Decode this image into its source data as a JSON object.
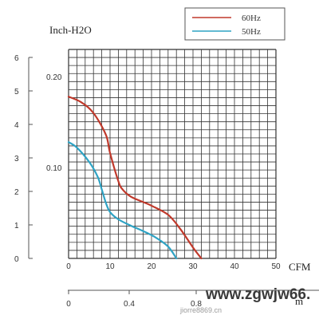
{
  "chart_data": {
    "type": "line",
    "title": "",
    "ylabel": "Inch-H2O",
    "xlabel": "CFM",
    "xlim": [
      0,
      50
    ],
    "x_ticks": [
      0,
      10,
      20,
      30,
      40,
      50
    ],
    "y_left_ticks": [
      0,
      1,
      2,
      3,
      4,
      5,
      6
    ],
    "y_inner_ticks": [
      "0.10",
      "0.20"
    ],
    "x2_ticks": [
      "0",
      "0.4",
      "0.8"
    ],
    "x2_label": "m",
    "ylim": [
      0,
      0.23
    ],
    "grid": true,
    "legend_position": "top-right",
    "series": [
      {
        "name": "60Hz",
        "color": "#c0392b",
        "x": [
          0,
          3,
          6,
          9,
          10,
          12,
          13,
          15,
          18,
          20,
          24,
          27,
          30,
          32
        ],
        "y": [
          0.178,
          0.172,
          0.16,
          0.136,
          0.116,
          0.085,
          0.076,
          0.068,
          0.062,
          0.058,
          0.048,
          0.032,
          0.012,
          0.0
        ]
      },
      {
        "name": "50Hz",
        "color": "#2fa3c4",
        "x": [
          0,
          2,
          5,
          7,
          8,
          9,
          10,
          12,
          15,
          18,
          21,
          24,
          26
        ],
        "y": [
          0.128,
          0.122,
          0.106,
          0.09,
          0.076,
          0.061,
          0.051,
          0.043,
          0.036,
          0.03,
          0.023,
          0.013,
          0.0
        ]
      }
    ]
  },
  "watermark": {
    "text": "www.zgwjw66.",
    "subtext": "jiorre8869.cn"
  }
}
